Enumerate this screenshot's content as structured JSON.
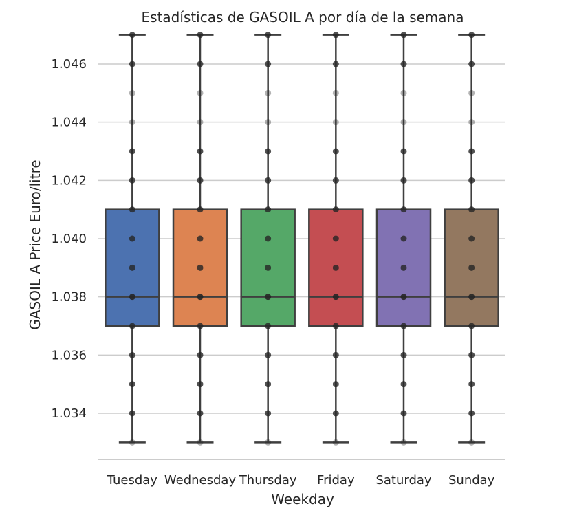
{
  "chart_data": {
    "type": "box",
    "title": "Estadísticas de GASOIL A por día de la semana",
    "xlabel": "Weekday",
    "ylabel": "GASOIL A Price Euro/litre",
    "ylim": [
      1.0325,
      1.0475
    ],
    "yticks": [
      "1.034",
      "1.036",
      "1.038",
      "1.040",
      "1.042",
      "1.044",
      "1.046"
    ],
    "categories": [
      "Tuesday",
      "Wednesday",
      "Thursday",
      "Friday",
      "Saturday",
      "Sunday"
    ],
    "boxes": [
      {
        "name": "Tuesday",
        "whisker_low": 1.033,
        "q1": 1.037,
        "median": 1.038,
        "q3": 1.041,
        "whisker_high": 1.047,
        "color": "#4c72b0"
      },
      {
        "name": "Wednesday",
        "whisker_low": 1.033,
        "q1": 1.037,
        "median": 1.038,
        "q3": 1.041,
        "whisker_high": 1.047,
        "color": "#dd8452"
      },
      {
        "name": "Thursday",
        "whisker_low": 1.033,
        "q1": 1.037,
        "median": 1.038,
        "q3": 1.041,
        "whisker_high": 1.047,
        "color": "#55a868"
      },
      {
        "name": "Friday",
        "whisker_low": 1.033,
        "q1": 1.037,
        "median": 1.038,
        "q3": 1.041,
        "whisker_high": 1.047,
        "color": "#c44e52"
      },
      {
        "name": "Saturday",
        "whisker_low": 1.033,
        "q1": 1.037,
        "median": 1.038,
        "q3": 1.041,
        "whisker_high": 1.047,
        "color": "#8172b3"
      },
      {
        "name": "Sunday",
        "whisker_low": 1.033,
        "q1": 1.037,
        "median": 1.038,
        "q3": 1.041,
        "whisker_high": 1.047,
        "color": "#937860"
      }
    ],
    "points": [
      {
        "y": 1.033,
        "opacity": 0.35
      },
      {
        "y": 1.034,
        "opacity": 0.8
      },
      {
        "y": 1.035,
        "opacity": 0.8
      },
      {
        "y": 1.036,
        "opacity": 0.8
      },
      {
        "y": 1.037,
        "opacity": 0.8
      },
      {
        "y": 1.038,
        "opacity": 0.9
      },
      {
        "y": 1.039,
        "opacity": 0.8
      },
      {
        "y": 1.04,
        "opacity": 0.8
      },
      {
        "y": 1.041,
        "opacity": 0.8
      },
      {
        "y": 1.042,
        "opacity": 0.8
      },
      {
        "y": 1.043,
        "opacity": 0.8
      },
      {
        "y": 1.044,
        "opacity": 0.35
      },
      {
        "y": 1.045,
        "opacity": 0.35
      },
      {
        "y": 1.046,
        "opacity": 0.8
      },
      {
        "y": 1.047,
        "opacity": 0.8
      }
    ],
    "grid": true,
    "colors": {
      "grid": "#cccccc",
      "box_edge": "#3f3f3f",
      "point": "#262626",
      "baseline": "#cccccc"
    }
  }
}
